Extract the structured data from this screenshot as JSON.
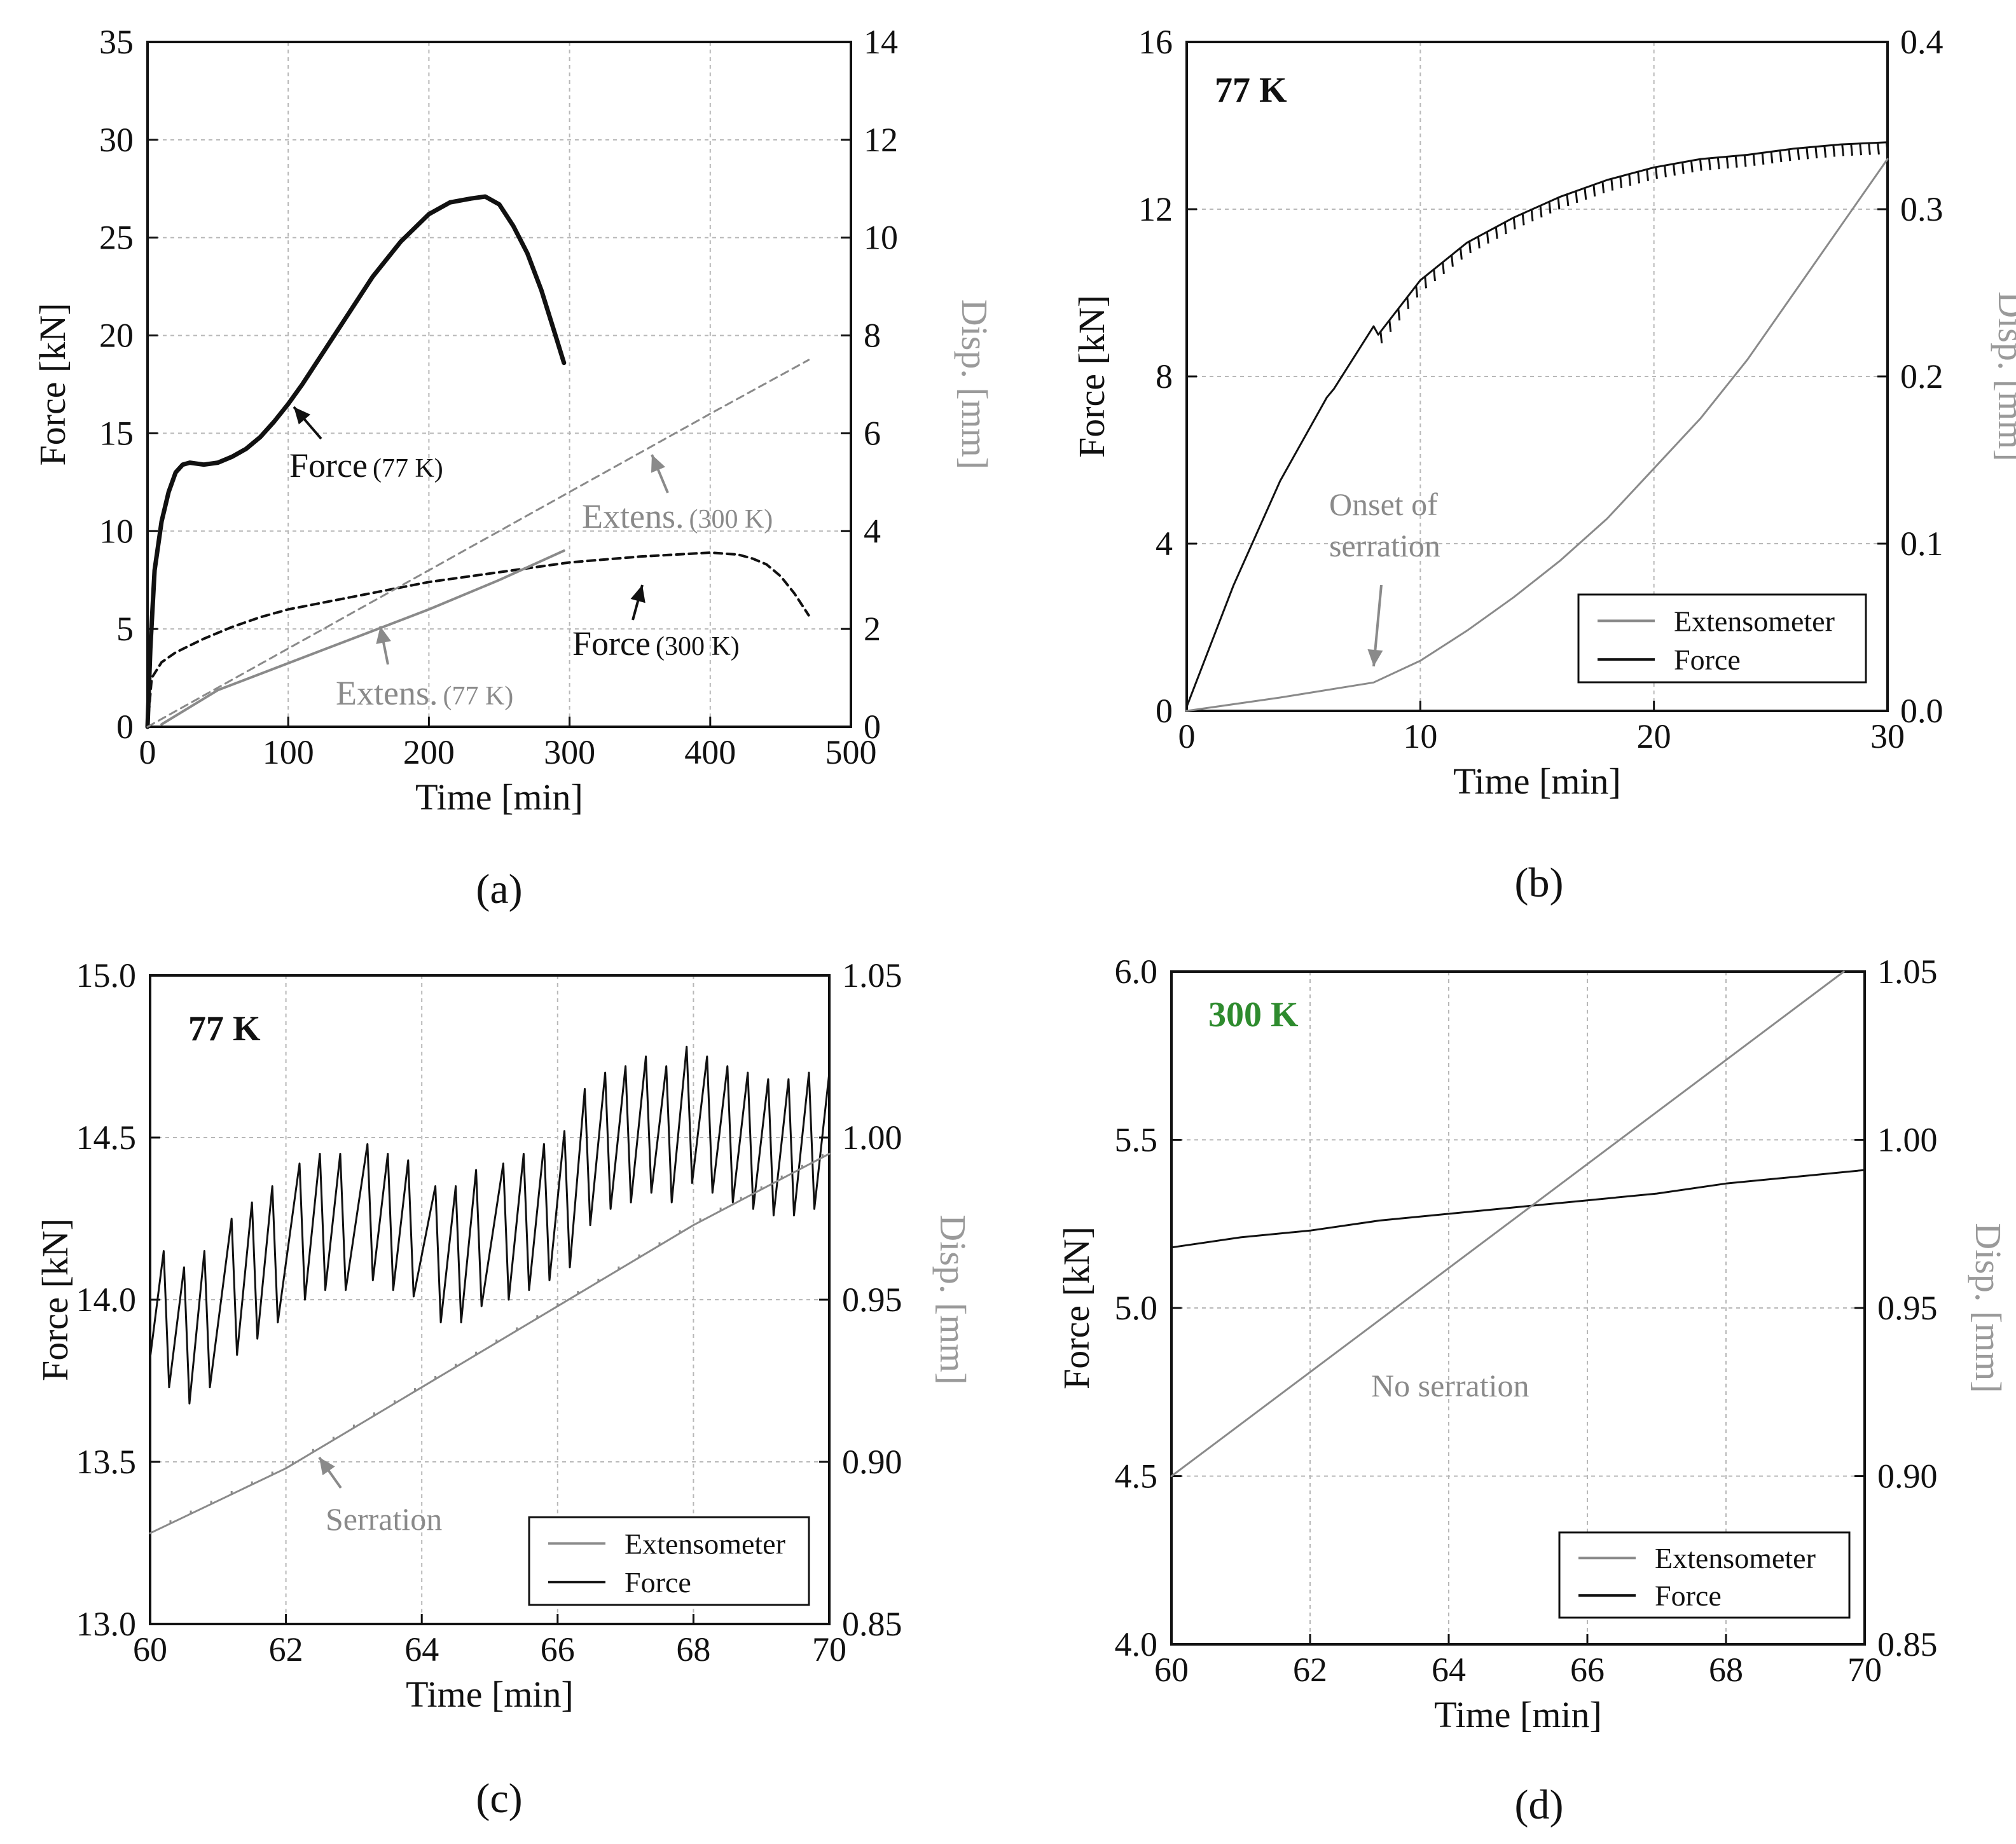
{
  "colors": {
    "force": "#111111",
    "extens": "#8a8a8a",
    "grid": "#b8b8b8",
    "green": "#2e8b2e"
  },
  "chart_data": [
    {
      "panel": "a",
      "caption": "(a)",
      "type": "line",
      "xlabel": "Time [min]",
      "ylabel": "Force [kN]",
      "y2label": "Disp. [mm]",
      "xlim": [
        0,
        500
      ],
      "ylim": [
        0,
        35
      ],
      "y2lim": [
        0,
        14
      ],
      "xticks": [
        "0",
        "100",
        "200",
        "300",
        "400",
        "500"
      ],
      "yticks": [
        "0",
        "5",
        "10",
        "15",
        "20",
        "25",
        "30",
        "35"
      ],
      "y2ticks": [
        "0",
        "2",
        "4",
        "6",
        "8",
        "10",
        "12",
        "14"
      ],
      "annotations": [
        {
          "text": "Force",
          "sub": "(77 K)"
        },
        {
          "text": "Extens.",
          "sub": "(300 K)"
        },
        {
          "text": "Force",
          "sub": "(300 K)"
        },
        {
          "text": "Extens.",
          "sub": "(77 K)"
        }
      ],
      "series": [
        {
          "name": "Force (77 K)",
          "axis": "left",
          "style": "force-thick",
          "x": [
            0,
            2,
            5,
            10,
            15,
            20,
            25,
            30,
            40,
            50,
            60,
            70,
            80,
            90,
            100,
            110,
            120,
            140,
            160,
            180,
            200,
            215,
            230,
            240,
            250,
            260,
            270,
            280,
            290,
            296
          ],
          "y": [
            0,
            4,
            8,
            10.5,
            12,
            13,
            13.4,
            13.5,
            13.4,
            13.5,
            13.8,
            14.2,
            14.8,
            15.6,
            16.5,
            17.5,
            18.6,
            20.8,
            23,
            24.8,
            26.2,
            26.8,
            27,
            27.1,
            26.7,
            25.6,
            24.2,
            22.3,
            20,
            18.6
          ]
        },
        {
          "name": "Force (300 K)",
          "axis": "left",
          "style": "force-dashed",
          "x": [
            0,
            3,
            10,
            20,
            40,
            60,
            80,
            100,
            150,
            200,
            250,
            300,
            350,
            400,
            420,
            430,
            440,
            450,
            460,
            470
          ],
          "y": [
            0,
            2.5,
            3.3,
            3.8,
            4.5,
            5.1,
            5.6,
            6,
            6.7,
            7.4,
            7.9,
            8.4,
            8.7,
            8.9,
            8.8,
            8.6,
            8.3,
            7.7,
            6.8,
            5.7
          ]
        },
        {
          "name": "Extens. (77 K)",
          "axis": "right",
          "style": "extens-solid",
          "x": [
            10,
            30,
            50,
            100,
            150,
            200,
            250,
            296
          ],
          "y": [
            0.05,
            0.4,
            0.75,
            1.3,
            1.85,
            2.4,
            3,
            3.6
          ]
        },
        {
          "name": "Extens. (300 K)",
          "axis": "right",
          "style": "extens-dashed",
          "x": [
            0,
            100,
            200,
            300,
            400,
            470
          ],
          "y": [
            0,
            1.6,
            3.2,
            4.8,
            6.4,
            7.5
          ]
        }
      ]
    },
    {
      "panel": "b",
      "caption": "(b)",
      "type": "line",
      "xlabel": "Time [min]",
      "ylabel": "Force [kN]",
      "y2label": "Disp. [mm]",
      "xlim": [
        0,
        30
      ],
      "ylim": [
        0,
        16
      ],
      "y2lim": [
        0,
        0.4
      ],
      "xticks": [
        "0",
        "10",
        "20",
        "30"
      ],
      "yticks": [
        "0",
        "4",
        "8",
        "12",
        "16"
      ],
      "y2ticks": [
        "0.0",
        "0.1",
        "0.2",
        "0.3",
        "0.4"
      ],
      "label": "77 K",
      "annotations": [
        {
          "text": "Onset of"
        },
        {
          "text": "serration"
        }
      ],
      "legend": [
        "Extensometer",
        "Force"
      ],
      "series": [
        {
          "name": "Force",
          "axis": "left",
          "style": "force",
          "x": [
            0,
            2,
            4,
            6,
            6.3,
            8,
            8.2,
            10,
            12,
            14,
            16,
            18,
            20,
            22,
            24,
            26,
            28,
            30
          ],
          "y": [
            0.1,
            3,
            5.5,
            7.5,
            7.7,
            9.2,
            9,
            10.3,
            11.2,
            11.8,
            12.3,
            12.7,
            13,
            13.2,
            13.3,
            13.45,
            13.55,
            13.6
          ]
        },
        {
          "name": "Extensometer",
          "axis": "right",
          "style": "extens",
          "x": [
            0,
            4,
            8,
            10,
            12,
            14,
            16,
            18,
            20,
            22,
            24,
            26,
            28,
            30
          ],
          "y": [
            0,
            0.008,
            0.017,
            0.03,
            0.048,
            0.068,
            0.09,
            0.115,
            0.145,
            0.175,
            0.21,
            0.25,
            0.29,
            0.33
          ]
        }
      ]
    },
    {
      "panel": "c",
      "caption": "(c)",
      "type": "line",
      "xlabel": "Time [min]",
      "ylabel": "Force [kN]",
      "y2label": "Disp. [mm]",
      "xlim": [
        60,
        70
      ],
      "ylim": [
        13.0,
        15.0
      ],
      "y2lim": [
        0.85,
        1.05
      ],
      "xticks": [
        "60",
        "62",
        "64",
        "66",
        "68",
        "70"
      ],
      "yticks": [
        "13.0",
        "13.5",
        "14.0",
        "14.5",
        "15.0"
      ],
      "y2ticks": [
        "0.85",
        "0.90",
        "0.95",
        "1.00",
        "1.05"
      ],
      "label": "77 K",
      "annotations": [
        {
          "text": "Serration"
        }
      ],
      "legend": [
        "Extensometer",
        "Force"
      ],
      "series": [
        {
          "name": "Force (peaks)",
          "axis": "left",
          "style": "force",
          "x": [
            60.2,
            60.5,
            60.8,
            61.2,
            61.5,
            61.8,
            62.2,
            62.5,
            62.8,
            63.2,
            63.5,
            63.8,
            64.2,
            64.5,
            64.8,
            65.2,
            65.5,
            65.8,
            66.1,
            66.4,
            66.7,
            67,
            67.3,
            67.6,
            67.9,
            68.2,
            68.5,
            68.8,
            69.1,
            69.4,
            69.7,
            70
          ],
          "y": [
            14.15,
            14.1,
            14.15,
            14.25,
            14.3,
            14.35,
            14.42,
            14.45,
            14.45,
            14.48,
            14.45,
            14.43,
            14.35,
            14.35,
            14.4,
            14.42,
            14.45,
            14.48,
            14.52,
            14.65,
            14.7,
            14.72,
            14.75,
            14.72,
            14.78,
            14.75,
            14.72,
            14.7,
            14.68,
            14.68,
            14.7,
            14.7
          ]
        },
        {
          "name": "Extensometer",
          "axis": "right",
          "style": "extens",
          "x": [
            60,
            62,
            64,
            66,
            68,
            70
          ],
          "y": [
            0.878,
            0.898,
            0.923,
            0.948,
            0.973,
            0.995
          ]
        }
      ]
    },
    {
      "panel": "d",
      "caption": "(d)",
      "type": "line",
      "xlabel": "Time [min]",
      "ylabel": "Force [kN]",
      "y2label": "Disp. [mm]",
      "xlim": [
        60,
        70
      ],
      "ylim": [
        4.0,
        6.0
      ],
      "y2lim": [
        0.85,
        1.05
      ],
      "xticks": [
        "60",
        "62",
        "64",
        "66",
        "68",
        "70"
      ],
      "yticks": [
        "4.0",
        "4.5",
        "5.0",
        "5.5",
        "6.0"
      ],
      "y2ticks": [
        "0.85",
        "0.90",
        "0.95",
        "1.00",
        "1.05"
      ],
      "label": "300 K",
      "annotations": [
        {
          "text": "No serration"
        }
      ],
      "legend": [
        "Extensometer",
        "Force"
      ],
      "series": [
        {
          "name": "Force",
          "axis": "left",
          "style": "force",
          "x": [
            60,
            61,
            62,
            63,
            64,
            65,
            66,
            67,
            68,
            69,
            70
          ],
          "y": [
            5.18,
            5.21,
            5.23,
            5.26,
            5.28,
            5.3,
            5.32,
            5.34,
            5.37,
            5.39,
            5.41
          ]
        },
        {
          "name": "Extensometer",
          "axis": "right",
          "style": "extens",
          "x": [
            60,
            69.7
          ],
          "y": [
            0.9,
            1.05
          ]
        }
      ]
    }
  ]
}
